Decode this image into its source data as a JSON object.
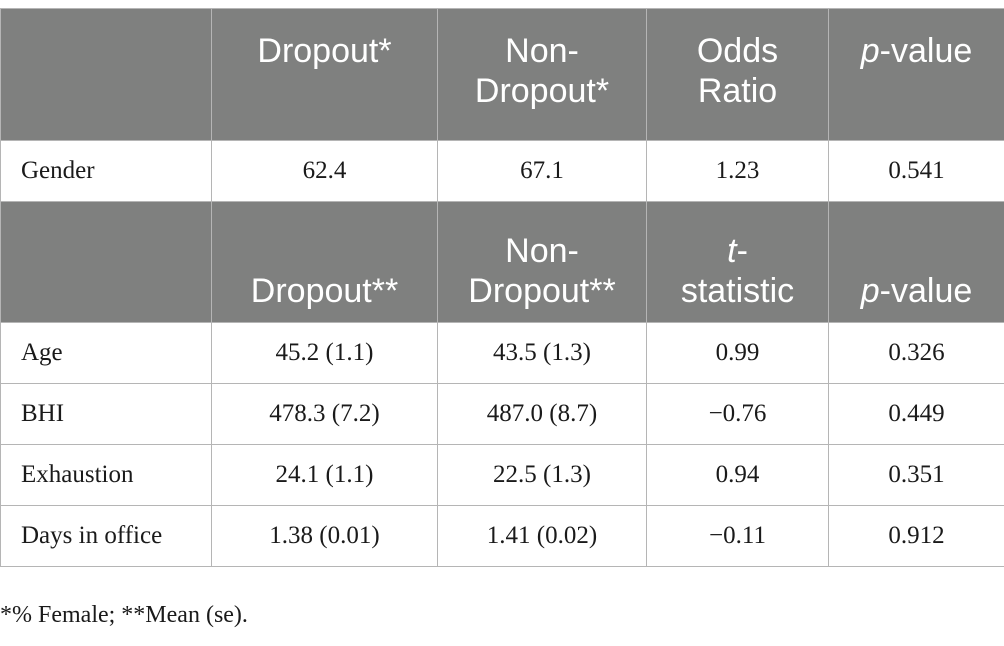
{
  "header1": {
    "col1": "Dropout*",
    "col2_line1": "Non-",
    "col2_line2": "Dropout*",
    "col3_line1": "Odds",
    "col3_line2": "Ratio",
    "col4_p": "p",
    "col4_rest": "-value"
  },
  "gender_row": {
    "label": "Gender",
    "dropout": "62.4",
    "non_dropout": "67.1",
    "stat": "1.23",
    "p": "0.541"
  },
  "header2": {
    "col1": "Dropout**",
    "col2_line1": "Non-",
    "col2_line2": "Dropout**",
    "col3_t": "t",
    "col3_dash": "-",
    "col3_line2": "statistic",
    "col4_p": "p",
    "col4_rest": "-value"
  },
  "rows": [
    {
      "label": "Age",
      "dropout": "45.2 (1.1)",
      "non_dropout": "43.5 (1.3)",
      "stat": "0.99",
      "p": "0.326"
    },
    {
      "label": "BHI",
      "dropout": "478.3 (7.2)",
      "non_dropout": "487.0 (8.7)",
      "stat": "−0.76",
      "p": "0.449"
    },
    {
      "label": "Exhaustion",
      "dropout": "24.1 (1.1)",
      "non_dropout": "22.5 (1.3)",
      "stat": "0.94",
      "p": "0.351"
    },
    {
      "label": "Days in office",
      "dropout": "1.38 (0.01)",
      "non_dropout": "1.41 (0.02)",
      "stat": "−0.11",
      "p": "0.912"
    }
  ],
  "footnote": "*% Female; **Mean (se)."
}
